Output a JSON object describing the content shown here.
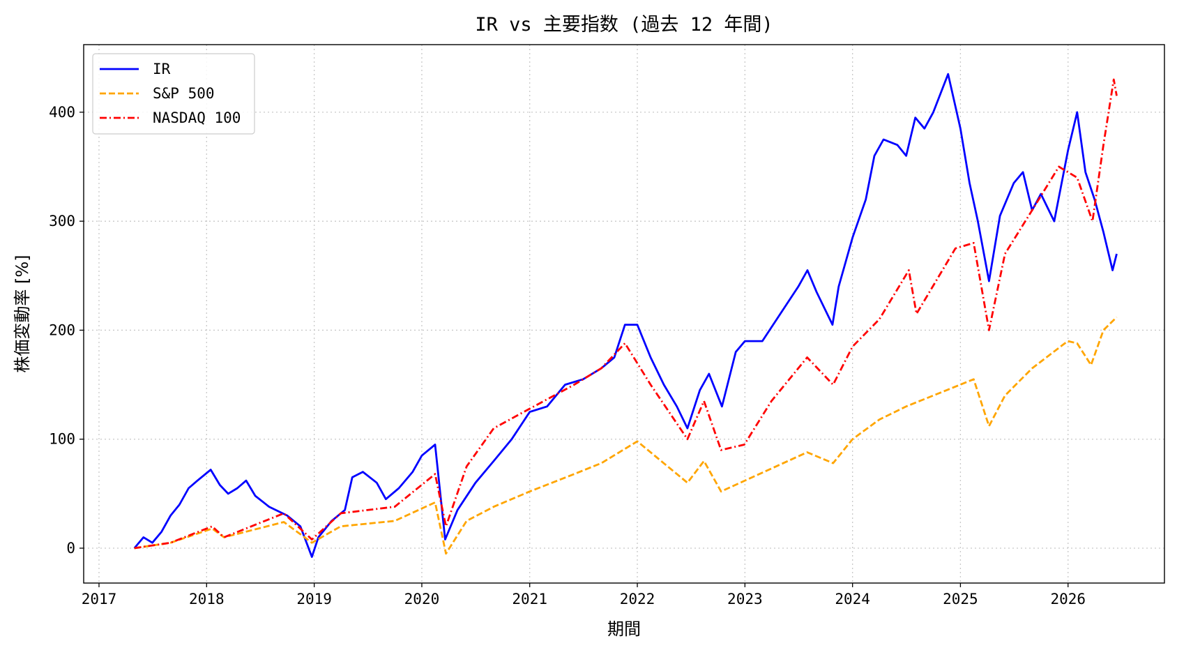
{
  "chart_data": {
    "type": "line",
    "title": "IR vs 主要指数 (過去 12 年間)",
    "xlabel": "期間",
    "ylabel": "株価変動率 [%]",
    "x_ticks": [
      "2017",
      "2018",
      "2019",
      "2020",
      "2021",
      "2022",
      "2023",
      "2024",
      "2025",
      "2026"
    ],
    "y_ticks": [
      "0",
      "100",
      "200",
      "300",
      "400"
    ],
    "xlim": [
      "2016-11-10",
      "2026-11-24"
    ],
    "ylim": [
      -32,
      462
    ],
    "grid": true,
    "legend_position": "upper-left",
    "series": [
      {
        "name": "IR",
        "color": "#0000ff",
        "style": "solid",
        "points": [
          [
            "2017-05-01",
            0
          ],
          [
            "2017-06-01",
            10
          ],
          [
            "2017-07-01",
            5
          ],
          [
            "2017-08-01",
            15
          ],
          [
            "2017-09-01",
            30
          ],
          [
            "2017-10-01",
            40
          ],
          [
            "2017-11-01",
            55
          ],
          [
            "2017-12-01",
            62
          ],
          [
            "2018-01-15",
            72
          ],
          [
            "2018-02-15",
            58
          ],
          [
            "2018-03-15",
            50
          ],
          [
            "2018-04-15",
            55
          ],
          [
            "2018-05-15",
            62
          ],
          [
            "2018-06-15",
            48
          ],
          [
            "2018-08-01",
            38
          ],
          [
            "2018-10-01",
            30
          ],
          [
            "2018-11-15",
            20
          ],
          [
            "2018-12-24",
            -8
          ],
          [
            "2019-01-15",
            10
          ],
          [
            "2019-03-01",
            25
          ],
          [
            "2019-04-15",
            35
          ],
          [
            "2019-05-10",
            65
          ],
          [
            "2019-06-15",
            70
          ],
          [
            "2019-08-01",
            60
          ],
          [
            "2019-09-01",
            45
          ],
          [
            "2019-10-15",
            55
          ],
          [
            "2019-12-01",
            70
          ],
          [
            "2020-01-01",
            85
          ],
          [
            "2020-02-15",
            95
          ],
          [
            "2020-03-20",
            8
          ],
          [
            "2020-05-01",
            35
          ],
          [
            "2020-07-01",
            60
          ],
          [
            "2020-09-01",
            80
          ],
          [
            "2020-11-01",
            100
          ],
          [
            "2021-01-01",
            125
          ],
          [
            "2021-03-01",
            130
          ],
          [
            "2021-05-01",
            150
          ],
          [
            "2021-07-01",
            155
          ],
          [
            "2021-09-01",
            165
          ],
          [
            "2021-10-15",
            175
          ],
          [
            "2021-11-20",
            205
          ],
          [
            "2022-01-01",
            205
          ],
          [
            "2022-02-15",
            175
          ],
          [
            "2022-04-01",
            150
          ],
          [
            "2022-05-15",
            130
          ],
          [
            "2022-06-20",
            110
          ],
          [
            "2022-08-01",
            145
          ],
          [
            "2022-09-01",
            160
          ],
          [
            "2022-10-15",
            130
          ],
          [
            "2022-12-01",
            180
          ],
          [
            "2023-01-01",
            190
          ],
          [
            "2023-03-01",
            190
          ],
          [
            "2023-05-01",
            215
          ],
          [
            "2023-07-01",
            240
          ],
          [
            "2023-08-01",
            255
          ],
          [
            "2023-09-01",
            235
          ],
          [
            "2023-10-25",
            205
          ],
          [
            "2023-11-15",
            240
          ],
          [
            "2024-01-01",
            285
          ],
          [
            "2024-02-15",
            320
          ],
          [
            "2024-03-15",
            360
          ],
          [
            "2024-04-15",
            375
          ],
          [
            "2024-06-01",
            370
          ],
          [
            "2024-07-01",
            360
          ],
          [
            "2024-08-01",
            395
          ],
          [
            "2024-09-01",
            385
          ],
          [
            "2024-10-01",
            400
          ],
          [
            "2024-11-20",
            435
          ],
          [
            "2025-01-01",
            385
          ],
          [
            "2025-02-01",
            335
          ],
          [
            "2025-03-01",
            300
          ],
          [
            "2025-04-08",
            245
          ],
          [
            "2025-05-15",
            305
          ],
          [
            "2025-07-01",
            335
          ],
          [
            "2025-08-01",
            345
          ],
          [
            "2025-09-01",
            310
          ],
          [
            "2025-10-01",
            325
          ],
          [
            "2025-11-15",
            300
          ],
          [
            "2026-01-01",
            365
          ],
          [
            "2026-02-01",
            400
          ],
          [
            "2026-03-01",
            345
          ],
          [
            "2026-04-01",
            320
          ],
          [
            "2026-05-01",
            290
          ],
          [
            "2026-06-01",
            255
          ],
          [
            "2026-06-15",
            270
          ]
        ]
      },
      {
        "name": "S&P 500",
        "color": "#ffa500",
        "style": "dashed",
        "points": [
          [
            "2017-05-01",
            0
          ],
          [
            "2017-09-01",
            5
          ],
          [
            "2018-01-20",
            18
          ],
          [
            "2018-03-01",
            10
          ],
          [
            "2018-09-20",
            24
          ],
          [
            "2018-12-24",
            5
          ],
          [
            "2019-04-01",
            20
          ],
          [
            "2019-10-01",
            25
          ],
          [
            "2020-02-15",
            42
          ],
          [
            "2020-03-23",
            -5
          ],
          [
            "2020-06-01",
            25
          ],
          [
            "2020-09-01",
            38
          ],
          [
            "2021-01-01",
            52
          ],
          [
            "2021-06-01",
            68
          ],
          [
            "2021-09-01",
            78
          ],
          [
            "2022-01-01",
            98
          ],
          [
            "2022-06-20",
            60
          ],
          [
            "2022-08-15",
            80
          ],
          [
            "2022-10-12",
            52
          ],
          [
            "2023-01-01",
            62
          ],
          [
            "2023-07-31",
            88
          ],
          [
            "2023-10-27",
            78
          ],
          [
            "2024-01-01",
            100
          ],
          [
            "2024-04-01",
            118
          ],
          [
            "2024-07-01",
            130
          ],
          [
            "2024-12-31",
            150
          ],
          [
            "2025-02-15",
            155
          ],
          [
            "2025-04-08",
            112
          ],
          [
            "2025-06-01",
            140
          ],
          [
            "2025-09-01",
            165
          ],
          [
            "2025-12-31",
            190
          ],
          [
            "2026-02-01",
            188
          ],
          [
            "2026-03-20",
            168
          ],
          [
            "2026-05-01",
            200
          ],
          [
            "2026-06-15",
            212
          ]
        ]
      },
      {
        "name": "NASDAQ 100",
        "color": "#ff0000",
        "style": "dashdot",
        "points": [
          [
            "2017-05-01",
            0
          ],
          [
            "2017-09-01",
            5
          ],
          [
            "2018-01-20",
            20
          ],
          [
            "2018-03-01",
            10
          ],
          [
            "2018-09-20",
            32
          ],
          [
            "2018-12-24",
            8
          ],
          [
            "2019-04-01",
            32
          ],
          [
            "2019-10-01",
            38
          ],
          [
            "2020-02-15",
            68
          ],
          [
            "2020-03-23",
            20
          ],
          [
            "2020-06-01",
            75
          ],
          [
            "2020-09-01",
            110
          ],
          [
            "2021-01-01",
            128
          ],
          [
            "2021-06-01",
            150
          ],
          [
            "2021-09-01",
            165
          ],
          [
            "2021-11-20",
            188
          ],
          [
            "2022-02-15",
            150
          ],
          [
            "2022-06-20",
            100
          ],
          [
            "2022-08-15",
            135
          ],
          [
            "2022-10-12",
            90
          ],
          [
            "2022-12-30",
            95
          ],
          [
            "2023-04-01",
            135
          ],
          [
            "2023-07-31",
            175
          ],
          [
            "2023-10-27",
            150
          ],
          [
            "2024-01-01",
            185
          ],
          [
            "2024-04-01",
            210
          ],
          [
            "2024-07-10",
            255
          ],
          [
            "2024-08-05",
            215
          ],
          [
            "2024-12-15",
            275
          ],
          [
            "2025-02-15",
            280
          ],
          [
            "2025-04-08",
            200
          ],
          [
            "2025-06-01",
            270
          ],
          [
            "2025-09-01",
            310
          ],
          [
            "2025-12-01",
            350
          ],
          [
            "2026-02-01",
            340
          ],
          [
            "2026-03-25",
            300
          ],
          [
            "2026-05-01",
            370
          ],
          [
            "2026-06-05",
            430
          ],
          [
            "2026-06-15",
            415
          ]
        ]
      }
    ]
  }
}
